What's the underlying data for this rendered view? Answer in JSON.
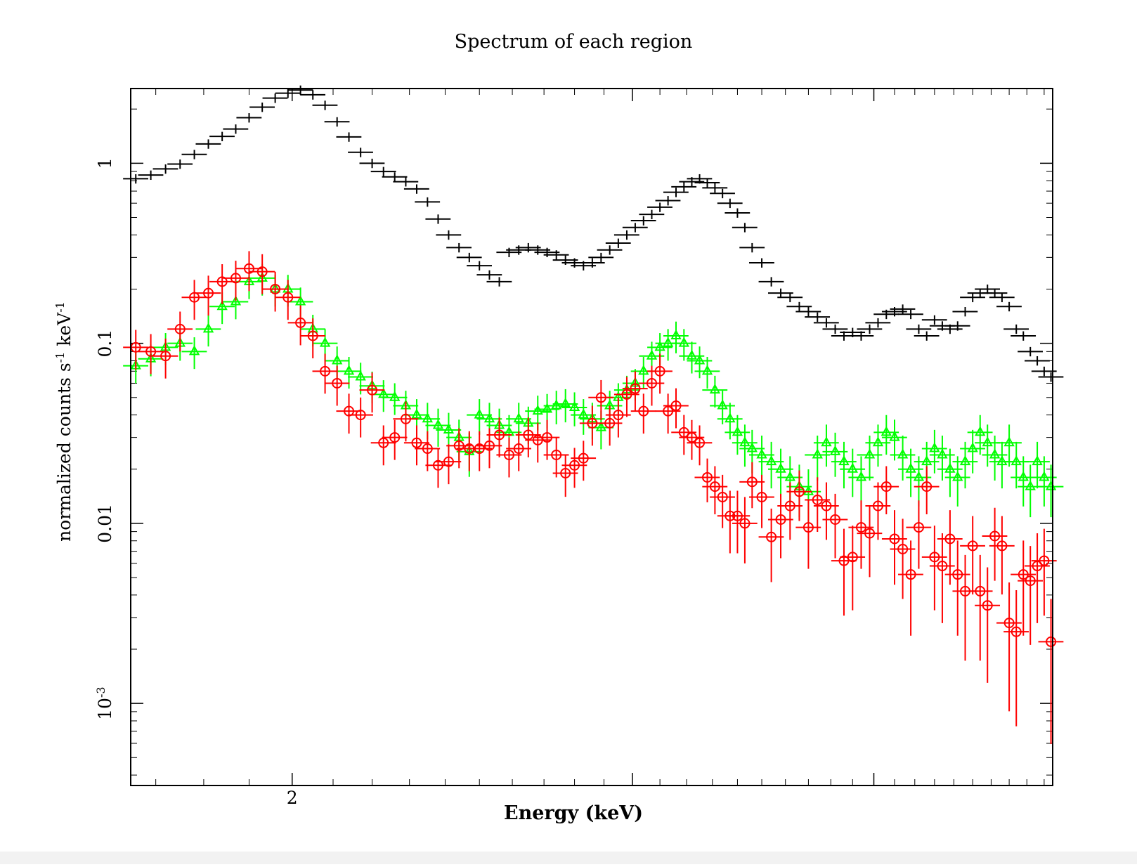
{
  "chart_data": {
    "type": "scatter",
    "title": "Spectrum of each region",
    "xlabel": "Energy (keV)",
    "ylabel": "normalized counts s^-1 keV^-1",
    "x_scale": "log",
    "y_scale": "log",
    "xlim": [
      1.65,
      4.95
    ],
    "ylim": [
      0.00035,
      2.6
    ],
    "x_tick_labels": [
      "2"
    ],
    "y_tick_labels": [
      "1",
      "0.1",
      "0.01",
      "10^-3"
    ],
    "grid": false,
    "legend": "none",
    "series": [
      {
        "color": "#000000",
        "marker": "cross",
        "x": [
          1.66,
          1.69,
          1.72,
          1.75,
          1.78,
          1.81,
          1.84,
          1.87,
          1.9,
          1.93,
          1.96,
          1.99,
          2.02,
          2.05,
          2.08,
          2.11,
          2.14,
          2.17,
          2.2,
          2.23,
          2.26,
          2.29,
          2.32,
          2.35,
          2.38,
          2.41,
          2.44,
          2.47,
          2.5,
          2.53,
          2.56,
          2.59,
          2.62,
          2.65,
          2.68,
          2.71,
          2.74,
          2.77,
          2.8,
          2.83,
          2.86,
          2.89,
          2.92,
          2.95,
          2.98,
          3.01,
          3.04,
          3.07,
          3.1,
          3.13,
          3.16,
          3.19,
          3.22,
          3.25,
          3.28,
          3.31,
          3.34,
          3.37,
          3.4,
          3.43,
          3.46,
          3.5,
          3.54,
          3.58,
          3.62,
          3.66,
          3.7,
          3.74,
          3.78,
          3.82,
          3.86,
          3.9,
          3.94,
          3.98,
          4.02,
          4.06,
          4.1,
          4.14,
          4.18,
          4.22,
          4.26,
          4.3,
          4.34,
          4.38,
          4.42,
          4.46,
          4.5,
          4.54,
          4.58,
          4.62,
          4.66,
          4.7,
          4.74,
          4.78,
          4.82,
          4.86,
          4.9,
          4.94
        ],
        "y": [
          0.82,
          0.86,
          0.93,
          0.99,
          1.12,
          1.28,
          1.41,
          1.55,
          1.79,
          2.05,
          2.3,
          2.45,
          2.55,
          2.4,
          2.1,
          1.7,
          1.4,
          1.15,
          1.0,
          0.9,
          0.84,
          0.79,
          0.72,
          0.61,
          0.49,
          0.4,
          0.34,
          0.3,
          0.27,
          0.24,
          0.22,
          0.32,
          0.33,
          0.34,
          0.33,
          0.32,
          0.31,
          0.29,
          0.28,
          0.27,
          0.28,
          0.3,
          0.33,
          0.36,
          0.4,
          0.44,
          0.48,
          0.52,
          0.57,
          0.62,
          0.69,
          0.74,
          0.79,
          0.82,
          0.78,
          0.73,
          0.68,
          0.6,
          0.53,
          0.44,
          0.34,
          0.28,
          0.22,
          0.19,
          0.18,
          0.16,
          0.15,
          0.14,
          0.13,
          0.12,
          0.11,
          0.115,
          0.11,
          0.12,
          0.13,
          0.145,
          0.15,
          0.155,
          0.145,
          0.12,
          0.11,
          0.135,
          0.125,
          0.12,
          0.125,
          0.15,
          0.18,
          0.19,
          0.2,
          0.19,
          0.18,
          0.16,
          0.12,
          0.11,
          0.09,
          0.08,
          0.07,
          0.065
        ]
      },
      {
        "color": "#00ff00",
        "marker": "triangle",
        "x": [
          1.66,
          1.69,
          1.72,
          1.75,
          1.78,
          1.81,
          1.84,
          1.87,
          1.9,
          1.93,
          1.96,
          1.99,
          2.02,
          2.05,
          2.08,
          2.11,
          2.14,
          2.17,
          2.2,
          2.23,
          2.26,
          2.29,
          2.32,
          2.35,
          2.38,
          2.41,
          2.44,
          2.47,
          2.5,
          2.53,
          2.56,
          2.59,
          2.62,
          2.65,
          2.68,
          2.71,
          2.74,
          2.77,
          2.8,
          2.83,
          2.86,
          2.89,
          2.92,
          2.95,
          2.98,
          3.01,
          3.04,
          3.07,
          3.1,
          3.13,
          3.16,
          3.19,
          3.22,
          3.25,
          3.28,
          3.31,
          3.34,
          3.37,
          3.4,
          3.43,
          3.46,
          3.5,
          3.54,
          3.58,
          3.62,
          3.66,
          3.7,
          3.74,
          3.78,
          3.82,
          3.86,
          3.9,
          3.94,
          3.98,
          4.02,
          4.06,
          4.1,
          4.14,
          4.18,
          4.22,
          4.26,
          4.3,
          4.34,
          4.38,
          4.42,
          4.46,
          4.5,
          4.54,
          4.58,
          4.62,
          4.66,
          4.7,
          4.74,
          4.78,
          4.82,
          4.86,
          4.9,
          4.94
        ],
        "y": [
          0.075,
          0.082,
          0.095,
          0.1,
          0.09,
          0.12,
          0.16,
          0.17,
          0.22,
          0.23,
          0.2,
          0.2,
          0.17,
          0.12,
          0.1,
          0.08,
          0.07,
          0.065,
          0.058,
          0.052,
          0.05,
          0.045,
          0.04,
          0.038,
          0.035,
          0.033,
          0.03,
          0.025,
          0.04,
          0.038,
          0.035,
          0.032,
          0.038,
          0.036,
          0.042,
          0.043,
          0.045,
          0.046,
          0.044,
          0.04,
          0.038,
          0.034,
          0.045,
          0.05,
          0.055,
          0.06,
          0.07,
          0.085,
          0.095,
          0.1,
          0.11,
          0.1,
          0.085,
          0.08,
          0.07,
          0.055,
          0.045,
          0.038,
          0.032,
          0.028,
          0.026,
          0.024,
          0.022,
          0.02,
          0.018,
          0.016,
          0.015,
          0.024,
          0.028,
          0.025,
          0.022,
          0.02,
          0.018,
          0.024,
          0.028,
          0.032,
          0.03,
          0.024,
          0.02,
          0.018,
          0.022,
          0.026,
          0.024,
          0.02,
          0.018,
          0.022,
          0.026,
          0.032,
          0.028,
          0.024,
          0.022,
          0.028,
          0.022,
          0.018,
          0.016,
          0.022,
          0.018,
          0.016
        ]
      },
      {
        "color": "#ff0000",
        "marker": "circle-plus",
        "x": [
          1.66,
          1.69,
          1.72,
          1.75,
          1.78,
          1.81,
          1.84,
          1.87,
          1.9,
          1.93,
          1.96,
          1.99,
          2.02,
          2.05,
          2.08,
          2.11,
          2.14,
          2.17,
          2.2,
          2.23,
          2.26,
          2.29,
          2.32,
          2.35,
          2.38,
          2.41,
          2.44,
          2.47,
          2.5,
          2.53,
          2.56,
          2.59,
          2.62,
          2.65,
          2.68,
          2.71,
          2.74,
          2.77,
          2.8,
          2.83,
          2.86,
          2.89,
          2.92,
          2.95,
          2.98,
          3.01,
          3.04,
          3.07,
          3.1,
          3.13,
          3.16,
          3.19,
          3.22,
          3.25,
          3.28,
          3.31,
          3.34,
          3.37,
          3.4,
          3.43,
          3.46,
          3.5,
          3.54,
          3.58,
          3.62,
          3.66,
          3.7,
          3.74,
          3.78,
          3.82,
          3.86,
          3.9,
          3.94,
          3.98,
          4.02,
          4.06,
          4.1,
          4.14,
          4.18,
          4.22,
          4.26,
          4.3,
          4.34,
          4.38,
          4.42,
          4.46,
          4.5,
          4.54,
          4.58,
          4.62,
          4.66,
          4.7,
          4.74,
          4.78,
          4.82,
          4.86,
          4.9,
          4.94
        ],
        "y": [
          0.095,
          0.09,
          0.085,
          0.12,
          0.18,
          0.19,
          0.22,
          0.23,
          0.26,
          0.25,
          0.2,
          0.18,
          0.13,
          0.11,
          0.07,
          0.06,
          0.042,
          0.04,
          0.055,
          0.028,
          0.03,
          0.038,
          0.028,
          0.026,
          0.021,
          0.022,
          0.027,
          0.026,
          0.026,
          0.027,
          0.031,
          0.024,
          0.026,
          0.031,
          0.029,
          0.03,
          0.024,
          0.019,
          0.021,
          0.023,
          0.036,
          0.05,
          0.036,
          0.04,
          0.052,
          0.056,
          0.042,
          0.06,
          0.07,
          0.042,
          0.045,
          0.032,
          0.03,
          0.028,
          0.018,
          0.016,
          0.014,
          0.011,
          0.011,
          0.01,
          0.017,
          0.014,
          0.0084,
          0.0105,
          0.0125,
          0.015,
          0.0095,
          0.0135,
          0.0125,
          0.0105,
          0.0062,
          0.0065,
          0.0095,
          0.0088,
          0.0125,
          0.016,
          0.0082,
          0.0072,
          0.0052,
          0.0095,
          0.016,
          0.0065,
          0.0058,
          0.0082,
          0.0052,
          0.0042,
          0.0075,
          0.0042,
          0.0035,
          0.0085,
          0.0075,
          0.0028,
          0.0025,
          0.0052,
          0.0048,
          0.0058,
          0.0062,
          0.0022
        ]
      }
    ]
  }
}
